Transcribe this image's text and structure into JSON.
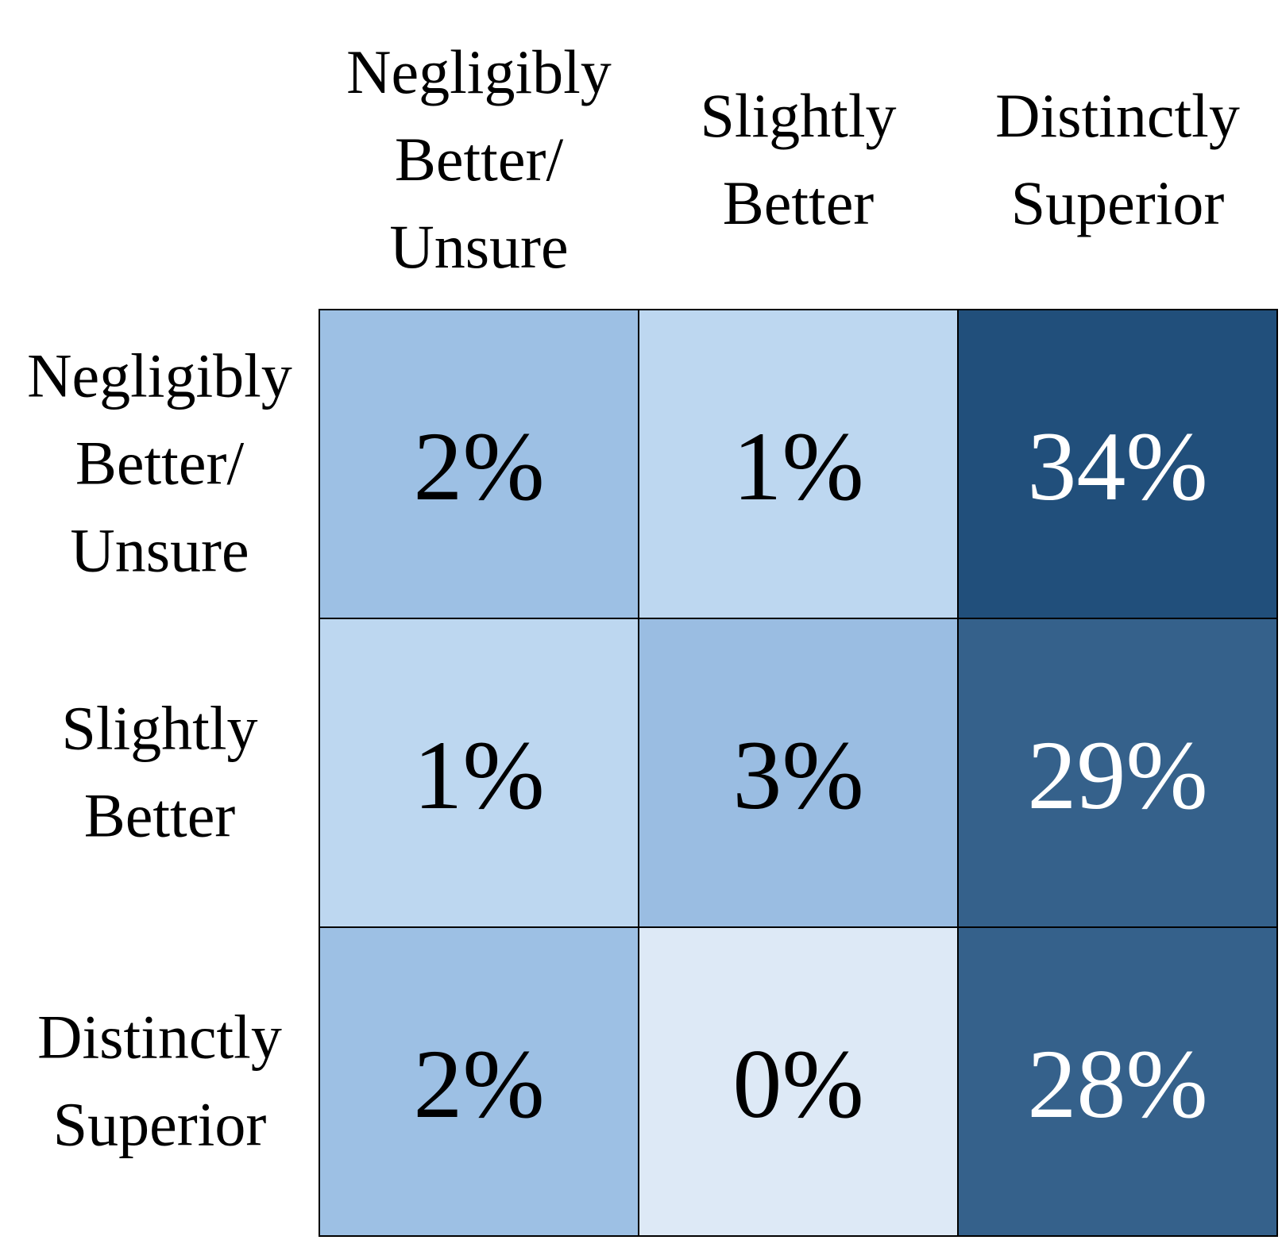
{
  "chart_data": {
    "type": "heatmap",
    "x_categories": [
      [
        "Negligibly",
        "Better/",
        "Unsure"
      ],
      [
        "Slightly",
        "Better"
      ],
      [
        "Distinctly",
        "Superior"
      ]
    ],
    "y_categories": [
      [
        "Negligibly",
        "Better/",
        "Unsure"
      ],
      [
        "Slightly",
        "Better"
      ],
      [
        "Distinctly",
        "Superior"
      ]
    ],
    "values": [
      [
        2,
        1,
        34
      ],
      [
        1,
        3,
        29
      ],
      [
        2,
        0,
        28
      ]
    ],
    "value_labels": [
      [
        "2%",
        "1%",
        "34%"
      ],
      [
        "1%",
        "3%",
        "29%"
      ],
      [
        "2%",
        "0%",
        "28%"
      ]
    ],
    "cell_colors": [
      [
        "#9dc0e4",
        "#bdd7f0",
        "#214f7b"
      ],
      [
        "#bdd7f0",
        "#9abde2",
        "#35618b"
      ],
      [
        "#9dc0e4",
        "#dde9f6",
        "#35618b"
      ]
    ],
    "label_colors": [
      [
        "#000000",
        "#000000",
        "#ffffff"
      ],
      [
        "#000000",
        "#000000",
        "#ffffff"
      ],
      [
        "#000000",
        "#000000",
        "#ffffff"
      ]
    ],
    "grid_color": "#000000"
  }
}
